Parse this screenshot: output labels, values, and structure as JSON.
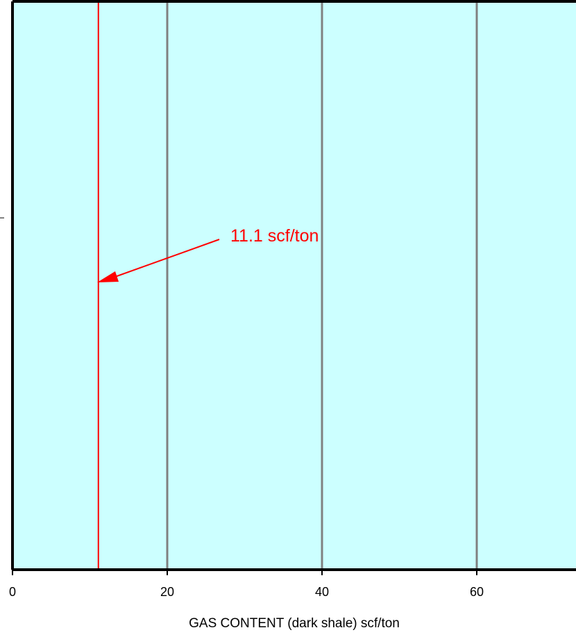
{
  "chart_data": {
    "type": "line",
    "title": "",
    "xlabel": "GAS CONTENT (dark shale) scf/ton",
    "ylabel": "",
    "xlim": [
      0,
      73
    ],
    "x_ticks": [
      {
        "value": 0,
        "label": "0"
      },
      {
        "value": 20,
        "label": "20"
      },
      {
        "value": 40,
        "label": "40"
      },
      {
        "value": 60,
        "label": "60"
      }
    ],
    "gridlines_x": [
      20,
      40,
      60
    ],
    "grid": true,
    "series": [
      {
        "kind": "vertical-reference-line",
        "x": 11.1
      }
    ],
    "annotations": [
      {
        "text": "11.1 scf/ton",
        "points_to_x": 11.1
      }
    ],
    "colors": {
      "plot_background": "#ccffff",
      "gridline": "#808080",
      "reference_line": "#ff0000",
      "frame": "#000000"
    }
  }
}
